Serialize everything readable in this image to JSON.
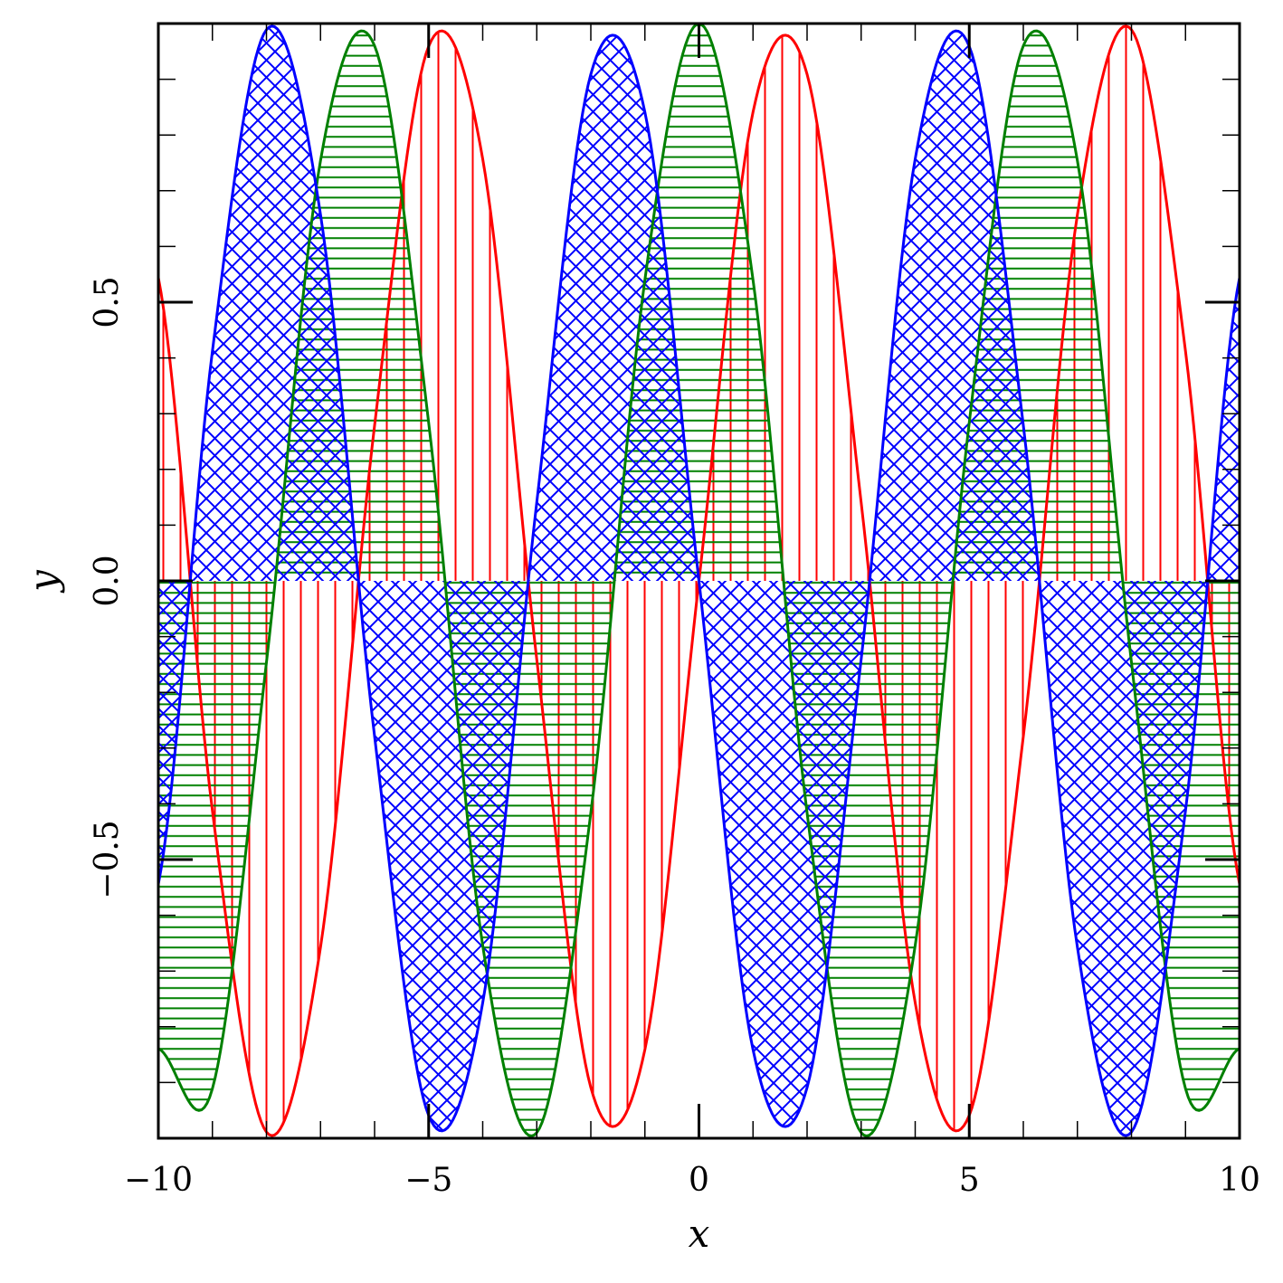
{
  "chart_data": {
    "type": "area",
    "title": "",
    "xlabel": "x",
    "ylabel": "y",
    "xlim": [
      -10,
      10
    ],
    "ylim": [
      -1,
      1
    ],
    "grid": false,
    "legend": "none",
    "fill_baseline": 0,
    "x_ticks": [
      -10,
      -5,
      0,
      5,
      10
    ],
    "x_tick_labels": [
      "−10",
      "−5",
      "0",
      "5",
      "10"
    ],
    "y_ticks": [
      -0.5,
      0.0,
      0.5
    ],
    "y_tick_labels": [
      "−0.5",
      "0.0",
      "0.5"
    ],
    "x": [
      -10,
      -9,
      -8,
      -7,
      -6,
      -5,
      -4,
      -3,
      -2,
      -1,
      0,
      1,
      2,
      3,
      4,
      5,
      6,
      7,
      8,
      9,
      10
    ],
    "series": [
      {
        "color": "#ff0000",
        "hatch": "vertical",
        "values": [
          0.544,
          -0.412,
          -0.989,
          -0.657,
          0.279,
          0.959,
          0.757,
          -0.141,
          -0.909,
          -0.841,
          0.0,
          0.841,
          0.909,
          0.141,
          -0.757,
          -0.959,
          -0.279,
          0.657,
          0.989,
          0.412,
          -0.544
        ]
      },
      {
        "color": "#008000",
        "hatch": "horizontal",
        "values": [
          -0.839,
          -0.911,
          -0.146,
          0.754,
          0.96,
          0.284,
          -0.654,
          -0.99,
          -0.416,
          0.54,
          1.0,
          0.54,
          -0.416,
          -0.99,
          -0.654,
          0.284,
          0.96,
          0.754,
          -0.146,
          -0.911,
          -0.839
        ]
      },
      {
        "color": "#0000ff",
        "hatch": "cross-diagonal",
        "values": [
          -0.544,
          0.412,
          0.989,
          0.657,
          -0.279,
          -0.959,
          -0.757,
          0.141,
          0.909,
          0.841,
          0.0,
          -0.841,
          -0.909,
          -0.141,
          0.757,
          0.959,
          0.279,
          -0.657,
          -0.989,
          -0.412,
          0.544
        ]
      }
    ]
  }
}
